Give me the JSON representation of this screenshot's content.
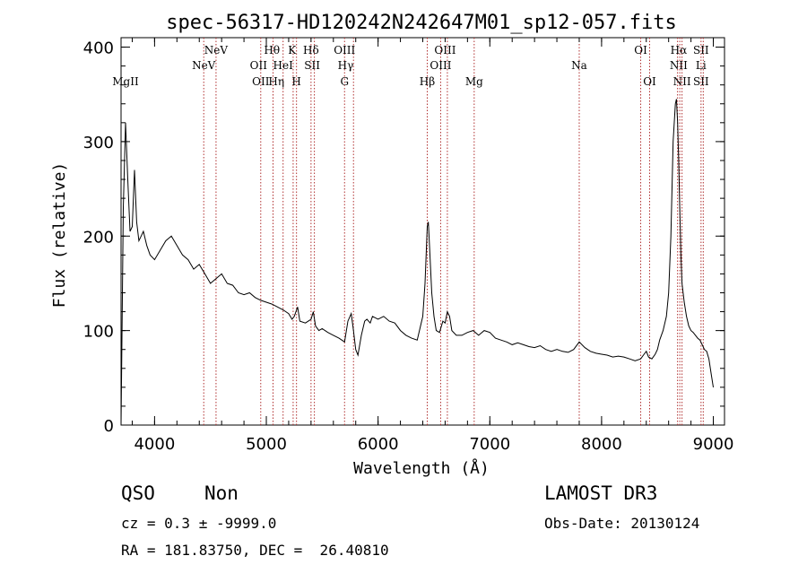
{
  "chart_data": {
    "type": "line",
    "title": "spec-56317-HD120242N242647M01_sp12-057.fits",
    "xlabel": "Wavelength (Å)",
    "ylabel": "Flux (relative)",
    "xlim": [
      3700,
      9100
    ],
    "ylim": [
      0,
      410
    ],
    "xticks": [
      4000,
      5000,
      6000,
      7000,
      8000,
      9000
    ],
    "yticks": [
      0,
      100,
      200,
      300,
      400
    ],
    "grid": false,
    "series": [
      {
        "x": [
          3700,
          3720,
          3740,
          3760,
          3780,
          3800,
          3820,
          3840,
          3860,
          3880,
          3900,
          3930,
          3960,
          4000,
          4050,
          4100,
          4150,
          4200,
          4250,
          4300,
          4350,
          4400,
          4450,
          4500,
          4550,
          4600,
          4650,
          4700,
          4750,
          4800,
          4850,
          4900,
          4950,
          5000,
          5050,
          5100,
          5150,
          5200,
          5230,
          5250,
          5280,
          5300,
          5350,
          5400,
          5420,
          5440,
          5470,
          5500,
          5550,
          5600,
          5650,
          5700,
          5730,
          5760,
          5780,
          5800,
          5820,
          5850,
          5880,
          5900,
          5930,
          5950,
          6000,
          6050,
          6100,
          6150,
          6200,
          6250,
          6300,
          6350,
          6400,
          6420,
          6440,
          6450,
          6460,
          6480,
          6500,
          6520,
          6550,
          6580,
          6600,
          6620,
          6640,
          6660,
          6700,
          6750,
          6800,
          6850,
          6900,
          6950,
          7000,
          7050,
          7100,
          7150,
          7200,
          7250,
          7300,
          7350,
          7400,
          7450,
          7500,
          7550,
          7600,
          7650,
          7700,
          7750,
          7800,
          7850,
          7900,
          7950,
          8000,
          8050,
          8100,
          8150,
          8200,
          8250,
          8300,
          8350,
          8380,
          8400,
          8420,
          8450,
          8480,
          8500,
          8520,
          8550,
          8580,
          8600,
          8620,
          8640,
          8660,
          8670,
          8680,
          8690,
          8700,
          8710,
          8720,
          8740,
          8760,
          8780,
          8800,
          8820,
          8840,
          8860,
          8880,
          8900,
          8920,
          8940,
          8960,
          8980,
          9000
        ],
        "y": [
          0,
          230,
          320,
          260,
          205,
          210,
          270,
          215,
          195,
          200,
          205,
          190,
          180,
          175,
          185,
          195,
          200,
          190,
          180,
          175,
          165,
          170,
          160,
          150,
          155,
          160,
          150,
          148,
          140,
          138,
          140,
          135,
          132,
          130,
          128,
          125,
          122,
          118,
          112,
          115,
          125,
          110,
          108,
          112,
          120,
          105,
          100,
          102,
          98,
          95,
          92,
          88,
          110,
          118,
          100,
          80,
          74,
          95,
          110,
          112,
          108,
          115,
          112,
          115,
          110,
          108,
          100,
          95,
          92,
          90,
          115,
          150,
          210,
          215,
          190,
          140,
          115,
          100,
          98,
          110,
          108,
          120,
          115,
          100,
          95,
          95,
          98,
          100,
          95,
          100,
          98,
          92,
          90,
          88,
          85,
          87,
          85,
          83,
          82,
          84,
          80,
          78,
          80,
          78,
          77,
          80,
          88,
          82,
          78,
          76,
          75,
          74,
          72,
          73,
          72,
          70,
          68,
          70,
          75,
          78,
          72,
          70,
          75,
          80,
          90,
          100,
          115,
          140,
          200,
          300,
          340,
          345,
          320,
          280,
          230,
          180,
          150,
          130,
          115,
          105,
          100,
          98,
          95,
          92,
          90,
          85,
          80,
          78,
          70,
          55,
          40
        ]
      }
    ],
    "line_markers": [
      {
        "name": "MgII",
        "wl": 3740,
        "row": 3
      },
      {
        "name": "NeV",
        "wl": 4440,
        "row": 2
      },
      {
        "name": "NeV",
        "wl": 4550,
        "row": 1
      },
      {
        "name": "OII",
        "wl": 4930,
        "row": 2
      },
      {
        "name": "OII",
        "wl": 4950,
        "row": 3
      },
      {
        "name": "Hθ",
        "wl": 5050,
        "row": 1
      },
      {
        "name": "Hη",
        "wl": 5090,
        "row": 3
      },
      {
        "name": "HeI",
        "wl": 5150,
        "row": 2
      },
      {
        "name": "K",
        "wl": 5230,
        "row": 1
      },
      {
        "name": "H",
        "wl": 5270,
        "row": 3
      },
      {
        "name": "Hδ",
        "wl": 5400,
        "row": 1
      },
      {
        "name": "SII",
        "wl": 5410,
        "row": 2
      },
      {
        "name": "OIII",
        "wl": 5700,
        "row": 1
      },
      {
        "name": "Hγ",
        "wl": 5710,
        "row": 2
      },
      {
        "name": "G",
        "wl": 5700,
        "row": 3
      },
      {
        "name": "Hβ",
        "wl": 6440,
        "row": 3
      },
      {
        "name": "OIII",
        "wl": 6600,
        "row": 1
      },
      {
        "name": "OIII",
        "wl": 6560,
        "row": 2
      },
      {
        "name": "Mg",
        "wl": 6860,
        "row": 3
      },
      {
        "name": "Na",
        "wl": 7800,
        "row": 2
      },
      {
        "name": "OI",
        "wl": 8350,
        "row": 1
      },
      {
        "name": "OI",
        "wl": 8430,
        "row": 3
      },
      {
        "name": "Hα",
        "wl": 8690,
        "row": 1
      },
      {
        "name": "NII",
        "wl": 8690,
        "row": 2
      },
      {
        "name": "NII",
        "wl": 8720,
        "row": 3
      },
      {
        "name": "SII",
        "wl": 8890,
        "row": 1
      },
      {
        "name": "Li",
        "wl": 8890,
        "row": 2
      },
      {
        "name": "SII",
        "wl": 8890,
        "row": 3
      }
    ],
    "marker_lines": [
      4440,
      4550,
      4950,
      5060,
      5150,
      5240,
      5270,
      5400,
      5430,
      5700,
      5780,
      6440,
      6560,
      6620,
      6860,
      7800,
      8350,
      8430,
      8680,
      8700,
      8720,
      8890,
      8910
    ]
  },
  "info": {
    "class_label": "QSO",
    "subclass_label": "Non",
    "survey": "LAMOST DR3",
    "cz": "cz = 0.3 ± -9999.0",
    "obs_date": "Obs-Date: 20130124",
    "coords": "RA = 181.83750, DEC =  26.40810"
  }
}
